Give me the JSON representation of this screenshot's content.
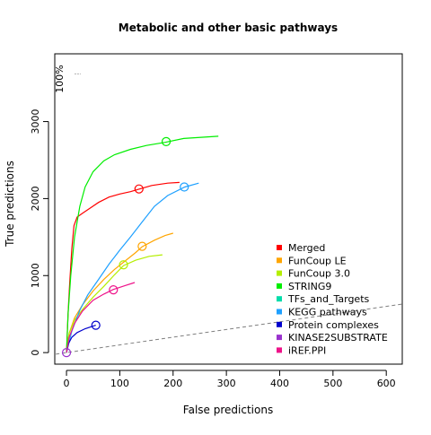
{
  "chart_data": {
    "type": "line",
    "title": "Metabolic and other basic pathways",
    "xlabel": "False predictions",
    "ylabel": "True predictions",
    "xlim": [
      -22,
      630
    ],
    "ylim": [
      -150,
      3880
    ],
    "x_ticks": [
      "0",
      "100",
      "200",
      "300",
      "400",
      "500",
      "600"
    ],
    "y_ticks": [
      "0",
      "1000",
      "2000",
      "3000"
    ],
    "annotation": "100%",
    "grid": false,
    "legend_position": "bottom-right",
    "diagonal_reference": {
      "from": [
        -20,
        -20
      ],
      "to": [
        630,
        630
      ],
      "style": "dashed",
      "color": "#808080"
    },
    "series": [
      {
        "name": "Merged",
        "color": "#ff0000",
        "points": [
          [
            0,
            0
          ],
          [
            3,
            500
          ],
          [
            6,
            900
          ],
          [
            10,
            1350
          ],
          [
            14,
            1650
          ],
          [
            20,
            1760
          ],
          [
            30,
            1810
          ],
          [
            45,
            1880
          ],
          [
            60,
            1950
          ],
          [
            80,
            2020
          ],
          [
            100,
            2060
          ],
          [
            120,
            2090
          ],
          [
            135,
            2120
          ],
          [
            160,
            2170
          ],
          [
            190,
            2200
          ],
          [
            212,
            2210
          ]
        ],
        "marker": [
          136,
          2125
        ]
      },
      {
        "name": "FunCoup LE",
        "color": "#ffa500",
        "points": [
          [
            0,
            0
          ],
          [
            5,
            250
          ],
          [
            15,
            450
          ],
          [
            30,
            620
          ],
          [
            50,
            800
          ],
          [
            70,
            950
          ],
          [
            90,
            1080
          ],
          [
            110,
            1190
          ],
          [
            130,
            1300
          ],
          [
            142,
            1375
          ],
          [
            165,
            1460
          ],
          [
            185,
            1520
          ],
          [
            200,
            1550
          ]
        ],
        "marker": [
          142,
          1380
        ]
      },
      {
        "name": "FunCoup 3.0",
        "color": "#b4ee00",
        "points": [
          [
            0,
            0
          ],
          [
            5,
            250
          ],
          [
            15,
            420
          ],
          [
            30,
            560
          ],
          [
            50,
            720
          ],
          [
            70,
            860
          ],
          [
            90,
            1010
          ],
          [
            107,
            1130
          ],
          [
            130,
            1200
          ],
          [
            155,
            1250
          ],
          [
            180,
            1270
          ]
        ],
        "marker": [
          107,
          1140
        ]
      },
      {
        "name": "STRING9",
        "color": "#00ee00",
        "points": [
          [
            0,
            0
          ],
          [
            3,
            500
          ],
          [
            8,
            1000
          ],
          [
            15,
            1500
          ],
          [
            25,
            1900
          ],
          [
            35,
            2150
          ],
          [
            50,
            2350
          ],
          [
            70,
            2490
          ],
          [
            90,
            2570
          ],
          [
            120,
            2640
          ],
          [
            150,
            2690
          ],
          [
            185,
            2730
          ],
          [
            220,
            2780
          ],
          [
            285,
            2810
          ]
        ],
        "marker": [
          187,
          2740
        ]
      },
      {
        "name": "TFs_and_Targets",
        "color": "#00ddaa",
        "points": [],
        "marker": null
      },
      {
        "name": "KEGG pathways",
        "color": "#1ea0ff",
        "points": [
          [
            0,
            0
          ],
          [
            10,
            280
          ],
          [
            25,
            550
          ],
          [
            40,
            750
          ],
          [
            60,
            950
          ],
          [
            80,
            1150
          ],
          [
            100,
            1330
          ],
          [
            120,
            1500
          ],
          [
            140,
            1680
          ],
          [
            165,
            1900
          ],
          [
            190,
            2040
          ],
          [
            222,
            2150
          ],
          [
            248,
            2200
          ]
        ],
        "marker": [
          221,
          2150
        ]
      },
      {
        "name": "Protein complexes",
        "color": "#0000cd",
        "points": [
          [
            0,
            0
          ],
          [
            4,
            120
          ],
          [
            10,
            200
          ],
          [
            20,
            260
          ],
          [
            35,
            310
          ],
          [
            55,
            355
          ]
        ],
        "marker": [
          55,
          355
        ]
      },
      {
        "name": "KINASE2SUBSTRATE",
        "color": "#9a32cd",
        "points": [],
        "marker": null
      },
      {
        "name": "iREF.PPI",
        "color": "#ee1289",
        "points": [
          [
            0,
            0
          ],
          [
            5,
            200
          ],
          [
            15,
            380
          ],
          [
            30,
            540
          ],
          [
            50,
            680
          ],
          [
            70,
            760
          ],
          [
            88,
            820
          ],
          [
            110,
            870
          ],
          [
            128,
            910
          ]
        ],
        "marker": [
          88,
          815
        ]
      }
    ],
    "top_marker": {
      "series_color": "#b0b0b0",
      "point": [
        20,
        3620
      ]
    }
  }
}
